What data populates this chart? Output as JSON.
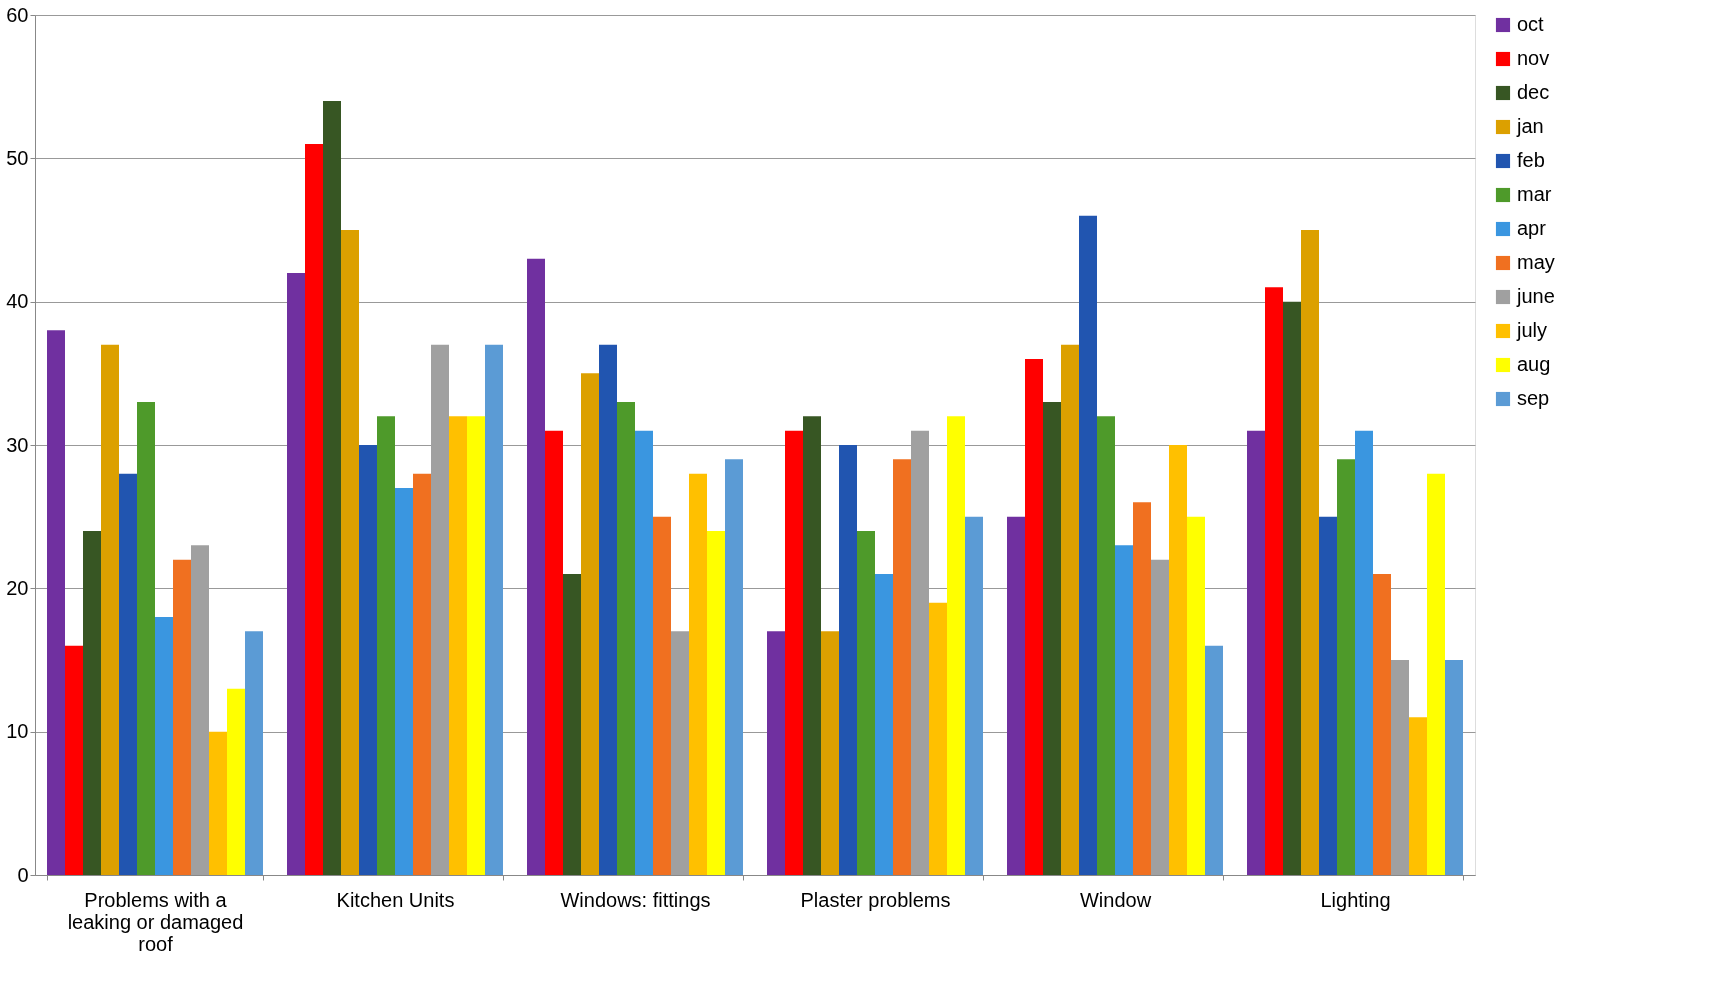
{
  "chart_data": {
    "type": "bar",
    "categories": [
      "Problems with a leaking or damaged roof",
      "Kitchen Units",
      "Windows: fittings",
      "Plaster problems",
      "Window",
      "Lighting"
    ],
    "series": [
      {
        "name": "oct",
        "color": "#7030a0",
        "values": [
          38,
          42,
          43,
          17,
          25,
          31
        ]
      },
      {
        "name": "nov",
        "color": "#ff0000",
        "values": [
          16,
          51,
          31,
          31,
          36,
          41
        ]
      },
      {
        "name": "dec",
        "color": "#375623",
        "values": [
          24,
          54,
          21,
          32,
          33,
          40
        ]
      },
      {
        "name": "jan",
        "color": "#dca000",
        "values": [
          37,
          45,
          35,
          17,
          37,
          45
        ]
      },
      {
        "name": "feb",
        "color": "#2155b0",
        "values": [
          28,
          30,
          37,
          30,
          46,
          25
        ]
      },
      {
        "name": "mar",
        "color": "#4e9a2a",
        "values": [
          33,
          32,
          33,
          24,
          32,
          29
        ]
      },
      {
        "name": "apr",
        "color": "#3a96e0",
        "values": [
          18,
          27,
          31,
          21,
          23,
          31
        ]
      },
      {
        "name": "may",
        "color": "#f07020",
        "values": [
          22,
          28,
          25,
          29,
          26,
          21
        ]
      },
      {
        "name": "june",
        "color": "#a0a0a0",
        "values": [
          23,
          37,
          17,
          31,
          22,
          15
        ]
      },
      {
        "name": "july",
        "color": "#ffc000",
        "values": [
          10,
          32,
          28,
          19,
          30,
          11
        ]
      },
      {
        "name": "aug",
        "color": "#ffff00",
        "values": [
          13,
          32,
          24,
          32,
          25,
          28
        ]
      },
      {
        "name": "sep",
        "color": "#5b9bd5",
        "values": [
          17,
          37,
          29,
          25,
          16,
          15
        ]
      }
    ],
    "ylim": [
      0,
      60
    ],
    "yticks": [
      0,
      10,
      20,
      30,
      40,
      50,
      60
    ],
    "grid": "y",
    "legend": "right"
  }
}
